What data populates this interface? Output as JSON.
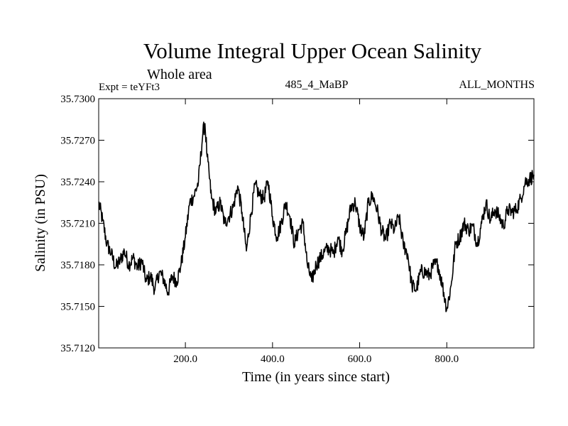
{
  "chart_data": {
    "type": "line",
    "title": "Volume Integral Upper Ocean Salinity",
    "subtitle": "Whole area",
    "experiment": "Expt = teYFt3",
    "run_label": "485_4_MaBP",
    "months_label": "ALL_MONTHS",
    "xlabel": "Time (in years since start)",
    "ylabel": "Salinity (in PSU)",
    "xlim": [
      1,
      1000
    ],
    "ylim": [
      35.712,
      35.73
    ],
    "xticks": [
      200,
      400,
      600,
      800
    ],
    "xtick_labels": [
      "200.0",
      "400.0",
      "600.0",
      "800.0"
    ],
    "yticks": [
      35.712,
      35.715,
      35.718,
      35.721,
      35.724,
      35.727,
      35.73
    ],
    "ytick_labels": [
      "35.7120",
      "35.7150",
      "35.7180",
      "35.7210",
      "35.7240",
      "35.7270",
      "35.7300"
    ],
    "grid": false,
    "series": [
      {
        "name": "Salinity",
        "color": "#000000",
        "x": [
          1,
          10,
          20,
          30,
          40,
          50,
          60,
          70,
          80,
          90,
          100,
          110,
          120,
          130,
          140,
          150,
          160,
          170,
          180,
          190,
          200,
          210,
          220,
          230,
          240,
          245,
          250,
          260,
          270,
          280,
          290,
          300,
          310,
          320,
          330,
          340,
          350,
          360,
          370,
          380,
          390,
          400,
          410,
          420,
          430,
          440,
          450,
          460,
          470,
          480,
          490,
          500,
          510,
          520,
          530,
          540,
          550,
          560,
          570,
          580,
          590,
          600,
          610,
          620,
          630,
          640,
          650,
          660,
          670,
          680,
          690,
          700,
          710,
          720,
          730,
          740,
          750,
          760,
          770,
          780,
          790,
          800,
          810,
          820,
          830,
          840,
          850,
          860,
          870,
          880,
          890,
          900,
          910,
          920,
          930,
          940,
          950,
          960,
          970,
          980,
          990,
          1000
        ],
        "values": [
          35.7225,
          35.7212,
          35.7195,
          35.7188,
          35.7178,
          35.7183,
          35.719,
          35.718,
          35.7185,
          35.7178,
          35.7183,
          35.7168,
          35.7172,
          35.7162,
          35.7175,
          35.717,
          35.716,
          35.7172,
          35.7168,
          35.718,
          35.72,
          35.7225,
          35.723,
          35.724,
          35.7275,
          35.7282,
          35.7258,
          35.7228,
          35.7218,
          35.7225,
          35.721,
          35.7215,
          35.7222,
          35.7237,
          35.7218,
          35.719,
          35.7215,
          35.7238,
          35.723,
          35.7228,
          35.724,
          35.7215,
          35.72,
          35.721,
          35.7225,
          35.7215,
          35.7195,
          35.7205,
          35.721,
          35.718,
          35.7168,
          35.718,
          35.7185,
          35.719,
          35.7192,
          35.7188,
          35.72,
          35.719,
          35.7205,
          35.7222,
          35.7225,
          35.7208,
          35.72,
          35.7225,
          35.723,
          35.722,
          35.7205,
          35.7198,
          35.721,
          35.7205,
          35.7215,
          35.7195,
          35.7188,
          35.7165,
          35.7162,
          35.7175,
          35.7175,
          35.7172,
          35.718,
          35.718,
          35.7165,
          35.7148,
          35.7165,
          35.7195,
          35.72,
          35.721,
          35.7205,
          35.7208,
          35.7195,
          35.721,
          35.7225,
          35.7212,
          35.722,
          35.7215,
          35.7208,
          35.722,
          35.7218,
          35.722,
          35.7228,
          35.724,
          35.7242,
          35.7245
        ]
      }
    ]
  }
}
